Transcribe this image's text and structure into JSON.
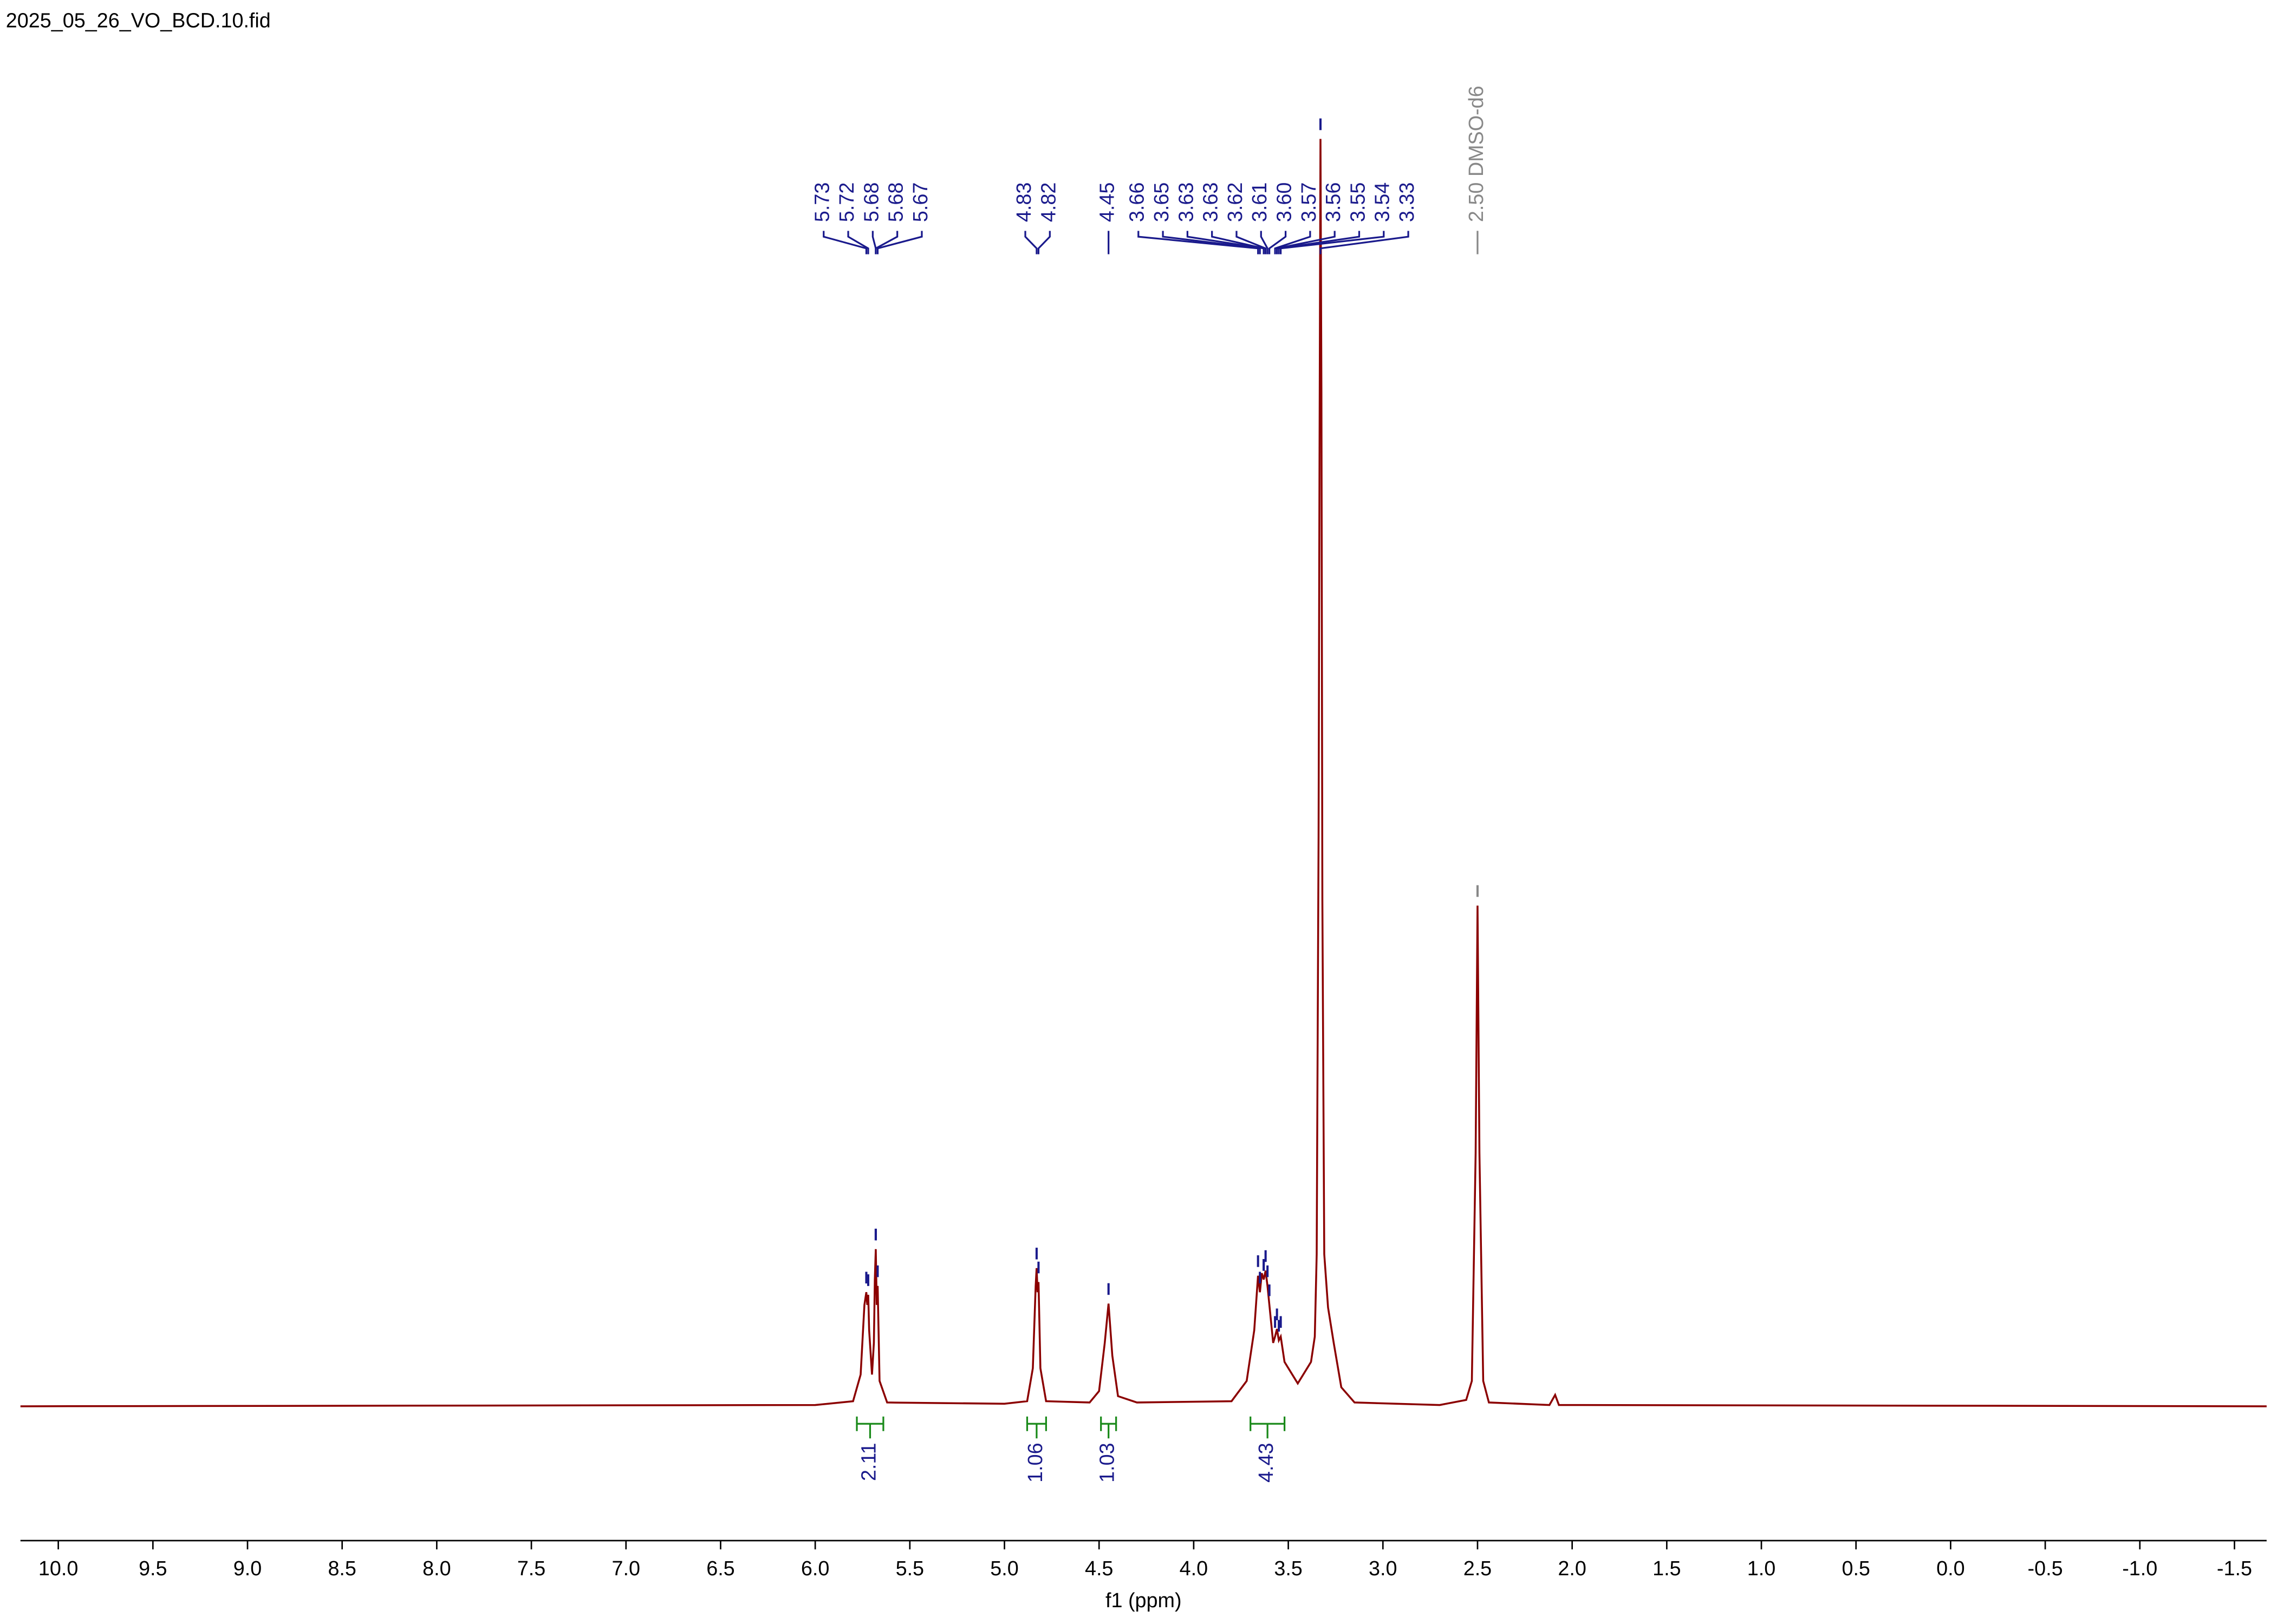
{
  "chart_data": {
    "type": "line",
    "title": "2025_05_26_VO_BCD.10.fid",
    "x_label": "f1 (ppm)",
    "xlim": [
      10.2,
      -1.67
    ],
    "ylim": [
      0,
      100
    ],
    "xticks": [
      {
        "value": 10.0,
        "label": "10.0"
      },
      9.5,
      {
        "value": 9.0,
        "label": "9.0"
      },
      8.5,
      {
        "value": 8.0,
        "label": "8.0"
      },
      7.5,
      {
        "value": 7.0,
        "label": "7.0"
      },
      6.5,
      {
        "value": 6.0,
        "label": "6.0"
      },
      5.5,
      {
        "value": 5.0,
        "label": "5.0"
      },
      4.5,
      {
        "value": 4.0,
        "label": "4.0"
      },
      3.5,
      {
        "value": 3.0,
        "label": "3.0"
      },
      2.5,
      {
        "value": 2.0,
        "label": "2.0"
      },
      1.5,
      {
        "value": 1.0,
        "label": "1.0"
      },
      0.5,
      {
        "value": 0.0,
        "label": "0.0"
      },
      -0.5,
      {
        "value": -1.0,
        "label": "-1.0"
      },
      -1.5
    ],
    "color": "#8b0000",
    "x": [
      10.2,
      6.0,
      5.8,
      5.76,
      5.74,
      5.735,
      5.73,
      5.725,
      5.72,
      5.715,
      5.7,
      5.69,
      5.685,
      5.68,
      5.675,
      5.67,
      5.66,
      5.62,
      5.0,
      4.88,
      4.85,
      4.835,
      4.83,
      4.825,
      4.82,
      4.81,
      4.78,
      4.55,
      4.5,
      4.47,
      4.45,
      4.43,
      4.4,
      4.3,
      3.8,
      3.72,
      3.68,
      3.66,
      3.65,
      3.64,
      3.63,
      3.62,
      3.61,
      3.6,
      3.58,
      3.57,
      3.56,
      3.55,
      3.54,
      3.52,
      3.45,
      3.38,
      3.36,
      3.35,
      3.34,
      3.335,
      3.33,
      3.325,
      3.32,
      3.31,
      3.29,
      3.26,
      3.22,
      3.15,
      2.7,
      2.56,
      2.53,
      2.51,
      2.5,
      2.49,
      2.47,
      2.44,
      2.12,
      2.09,
      2.07,
      -1.67
    ],
    "values": [
      0,
      0.1,
      0.4,
      2.5,
      8.0,
      8.5,
      9.0,
      8.0,
      8.8,
      6,
      2.5,
      5,
      10,
      12.4,
      8,
      9.5,
      2,
      0.3,
      0.2,
      0.4,
      3,
      9.5,
      10.9,
      9,
      9.8,
      3,
      0.4,
      0.3,
      1.2,
      5,
      8.1,
      4,
      0.8,
      0.3,
      0.4,
      2,
      6,
      10.3,
      9,
      10.5,
      10,
      10.7,
      9.5,
      8,
      5,
      5.5,
      6.1,
      5.2,
      5.5,
      3.5,
      1.8,
      3.5,
      5.5,
      12,
      45,
      75,
      100,
      80,
      40,
      12,
      7.8,
      5,
      1.5,
      0.3,
      0.1,
      0.5,
      2,
      20,
      39.5,
      20,
      2,
      0.3,
      0.1,
      0.9,
      0.1,
      0
    ],
    "peaks": [
      5.73,
      5.72,
      5.68,
      5.68,
      5.67,
      4.83,
      4.82,
      4.45,
      3.66,
      3.65,
      3.63,
      3.63,
      3.62,
      3.61,
      {
        "value": 3.6,
        "label": "3.60"
      },
      3.57,
      3.56,
      3.55,
      3.54,
      3.33,
      {
        "value": 2.5,
        "label": "2.50 DMSO-d6"
      }
    ],
    "peak_color": "#1a1a8c",
    "solvent_color": "#888888",
    "integrals": [
      {
        "from": 5.78,
        "to": 5.64,
        "value": 2.11
      },
      {
        "from": 4.88,
        "to": 4.78,
        "value": 1.06
      },
      {
        "from": 4.49,
        "to": 4.41,
        "value": 1.03
      },
      {
        "from": 3.7,
        "to": 3.52,
        "value": 4.43
      }
    ],
    "integral_color": "#1a8a1a"
  }
}
